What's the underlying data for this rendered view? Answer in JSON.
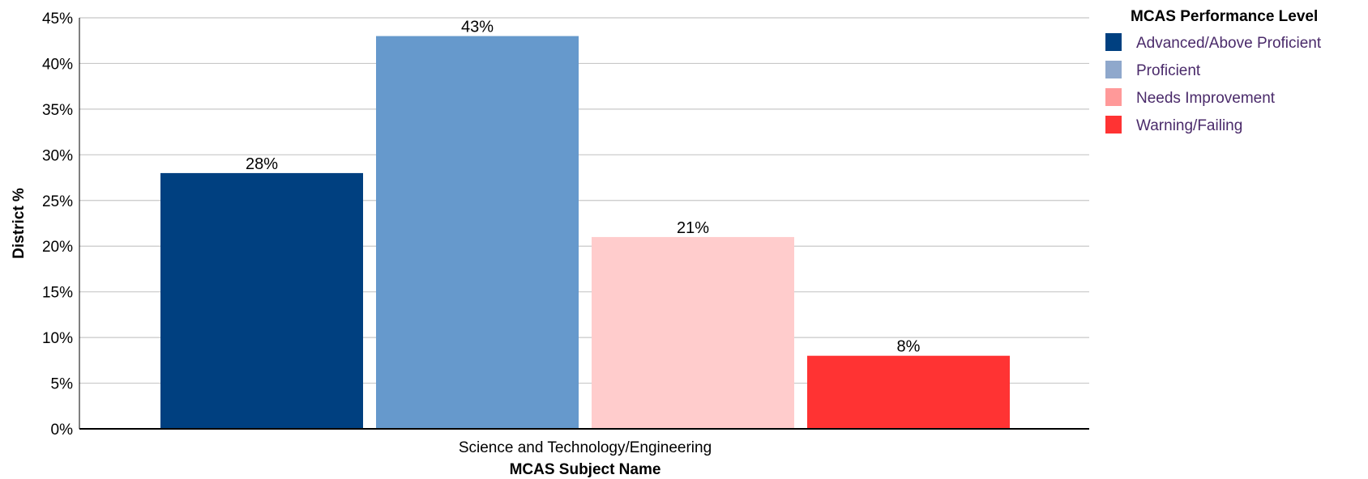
{
  "chart_data": {
    "type": "bar",
    "categories": [
      "Science and Technology/Engineering"
    ],
    "series": [
      {
        "name": "Advanced/Above Proficient",
        "values": [
          28
        ],
        "label": "28%",
        "color": "#004080"
      },
      {
        "name": "Proficient",
        "values": [
          43
        ],
        "label": "43%",
        "color": "#6699cc"
      },
      {
        "name": "Needs Improvement",
        "values": [
          21
        ],
        "label": "21%",
        "color": "#ffcccc"
      },
      {
        "name": "Warning/Failing",
        "values": [
          8
        ],
        "label": "8%",
        "color": "#ff3333"
      }
    ],
    "xlabel": "MCAS Subject Name",
    "ylabel": "District %",
    "ylim": [
      0,
      45
    ],
    "yticks": [
      "0%",
      "5%",
      "10%",
      "15%",
      "20%",
      "25%",
      "30%",
      "35%",
      "40%",
      "45%"
    ],
    "grid": true,
    "legend": {
      "title": "MCAS Performance Level",
      "placement": "right",
      "items": [
        {
          "label": "Advanced/Above Proficient",
          "color": "#004080"
        },
        {
          "label": "Proficient",
          "color": "#8fa8cc"
        },
        {
          "label": "Needs Improvement",
          "color": "#ff9999"
        },
        {
          "label": "Warning/Failing",
          "color": "#ff3333"
        }
      ]
    }
  }
}
